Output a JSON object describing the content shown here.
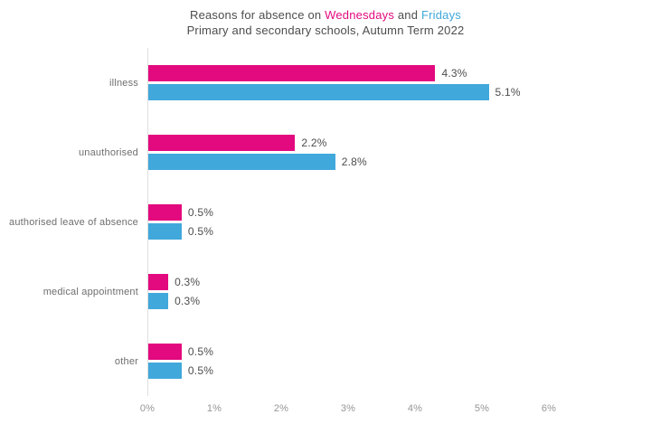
{
  "title": {
    "prefix": "Reasons for absence on ",
    "wednesdays": "Wednesdays",
    "connector": " and ",
    "fridays": "Fridays",
    "line2": "Primary and secondary schools, Autumn Term 2022"
  },
  "colors": {
    "wednesday_pink": "#e3097e",
    "friday_blue": "#41a8db",
    "title_text": "#4d4d4d",
    "category_label": "#6e6e6e",
    "value_label": "#4d4d4d",
    "tick_label": "#969696",
    "axis_line": "#dedede"
  },
  "chart_data": {
    "type": "bar",
    "orientation": "horizontal",
    "title": "Reasons for absence on Wednesdays and Fridays",
    "subtitle": "Primary and secondary schools, Autumn Term 2022",
    "categories": [
      "illness",
      "unauthorised",
      "authorised leave of absence",
      "medical appointment",
      "other"
    ],
    "series": [
      {
        "name": "Wednesdays",
        "color": "#e3097e",
        "values": [
          4.3,
          2.2,
          0.5,
          0.3,
          0.5
        ],
        "data_labels": [
          "4.3%",
          "2.2%",
          "0.5%",
          "0.3%",
          "0.5%"
        ]
      },
      {
        "name": "Fridays",
        "color": "#41a8db",
        "values": [
          5.1,
          2.8,
          0.5,
          0.3,
          0.5
        ],
        "data_labels": [
          "5.1%",
          "2.8%",
          "0.5%",
          "0.3%",
          "0.5%"
        ]
      }
    ],
    "x_axis": {
      "min": 0,
      "max": 6,
      "ticks": [
        "0%",
        "1%",
        "2%",
        "3%",
        "4%",
        "5%",
        "6%"
      ]
    },
    "y_axis": {
      "label": ""
    },
    "grid": false,
    "legend": "encoded-in-title-colors"
  }
}
